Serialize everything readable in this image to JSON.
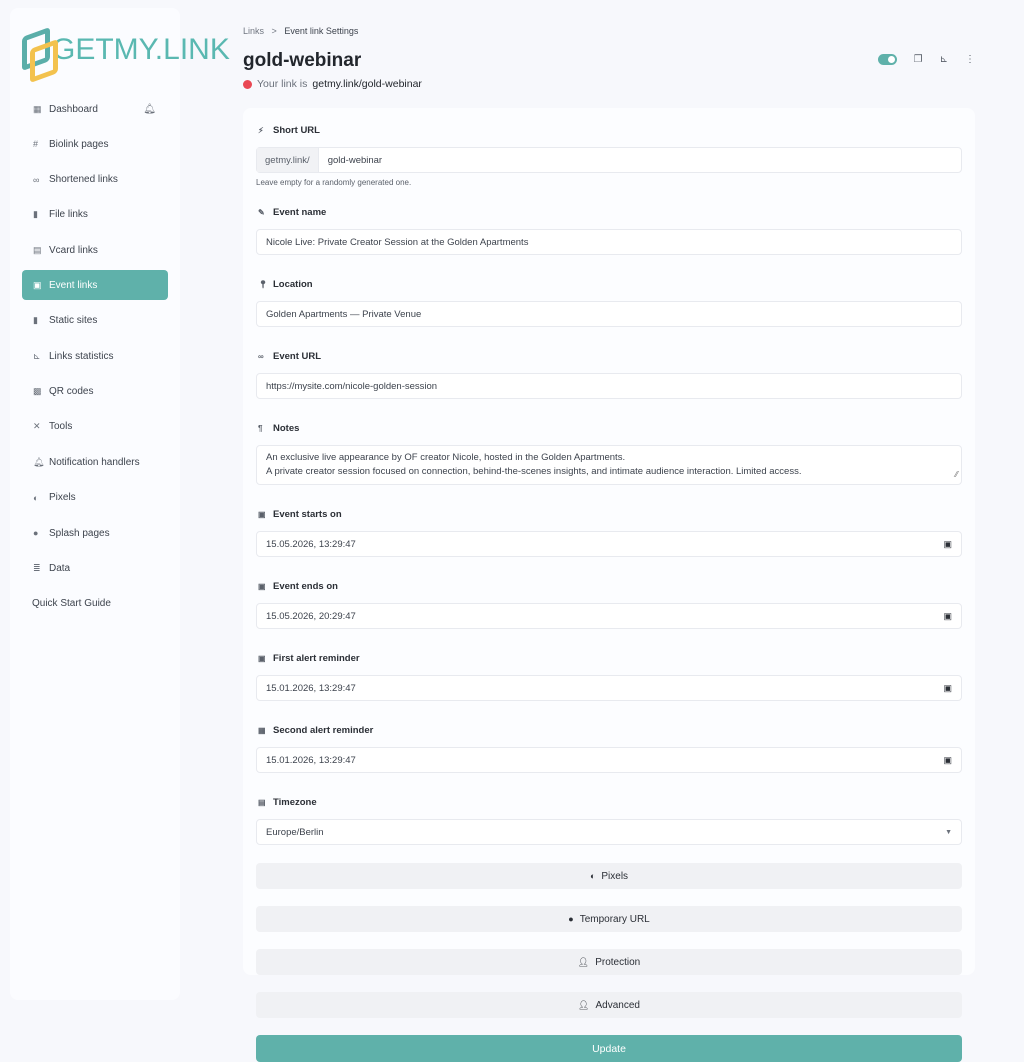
{
  "brand": {
    "name": "GETMY.LINK",
    "colors": {
      "accent": "#5fb1aa",
      "logo_yellow": "#f3c24e",
      "status_red": "#e94753"
    }
  },
  "sidebar": {
    "items": [
      {
        "label": "Dashboard",
        "icon": "grid-icon"
      },
      {
        "label": "Biolink pages",
        "icon": "hash-icon"
      },
      {
        "label": "Shortened links",
        "icon": "link-icon"
      },
      {
        "label": "File links",
        "icon": "file-icon"
      },
      {
        "label": "Vcard links",
        "icon": "id-card-icon"
      },
      {
        "label": "Event links",
        "icon": "calendar-icon",
        "active": true
      },
      {
        "label": "Static sites",
        "icon": "file-code-icon"
      },
      {
        "label": "Links statistics",
        "icon": "chart-icon"
      },
      {
        "label": "QR codes",
        "icon": "qrcode-icon"
      },
      {
        "label": "Tools",
        "icon": "tools-icon"
      },
      {
        "label": "Notification handlers",
        "icon": "bell-icon"
      },
      {
        "label": "Pixels",
        "icon": "adjust-icon"
      },
      {
        "label": "Splash pages",
        "icon": "droplet-icon"
      },
      {
        "label": "Data",
        "icon": "database-icon"
      },
      {
        "label": "Quick Start Guide"
      }
    ]
  },
  "breadcrumb": {
    "parent": "Links",
    "separator": ">",
    "current": "Event link Settings"
  },
  "header": {
    "title": "gold-webinar",
    "link_prefix": "Your link is",
    "link": "getmy.link/gold-webinar",
    "toggle_on": true
  },
  "form": {
    "short_url": {
      "label": "Short URL",
      "prefix": "getmy.link/",
      "value": "gold-webinar",
      "help": "Leave empty for a randomly generated one."
    },
    "event_name": {
      "label": "Event name",
      "value": "Nicole Live: Private Creator Session at the Golden Apartments"
    },
    "location": {
      "label": "Location",
      "value": "Golden Apartments — Private Venue"
    },
    "event_url": {
      "label": "Event URL",
      "value": "https://mysite.com/nicole-golden-session"
    },
    "notes": {
      "label": "Notes",
      "line1": "An exclusive live appearance by OF creator Nicole, hosted in the Golden Apartments.",
      "line2": "A private creator session focused on connection, behind-the-scenes insights, and intimate audience interaction. Limited access."
    },
    "starts": {
      "label": "Event starts on",
      "value": "15.05.2026, 13:29:47"
    },
    "ends": {
      "label": "Event ends on",
      "value": "15.05.2026, 20:29:47"
    },
    "first_alert": {
      "label": "First alert reminder",
      "value": "15.01.2026, 13:29:47"
    },
    "second_alert": {
      "label": "Second alert reminder",
      "value": "15.01.2026, 13:29:47"
    },
    "timezone": {
      "label": "Timezone",
      "value": "Europe/Berlin"
    },
    "sections": {
      "pixels": "Pixels",
      "temporary": "Temporary URL",
      "protection": "Protection",
      "advanced": "Advanced"
    },
    "update": "Update"
  }
}
